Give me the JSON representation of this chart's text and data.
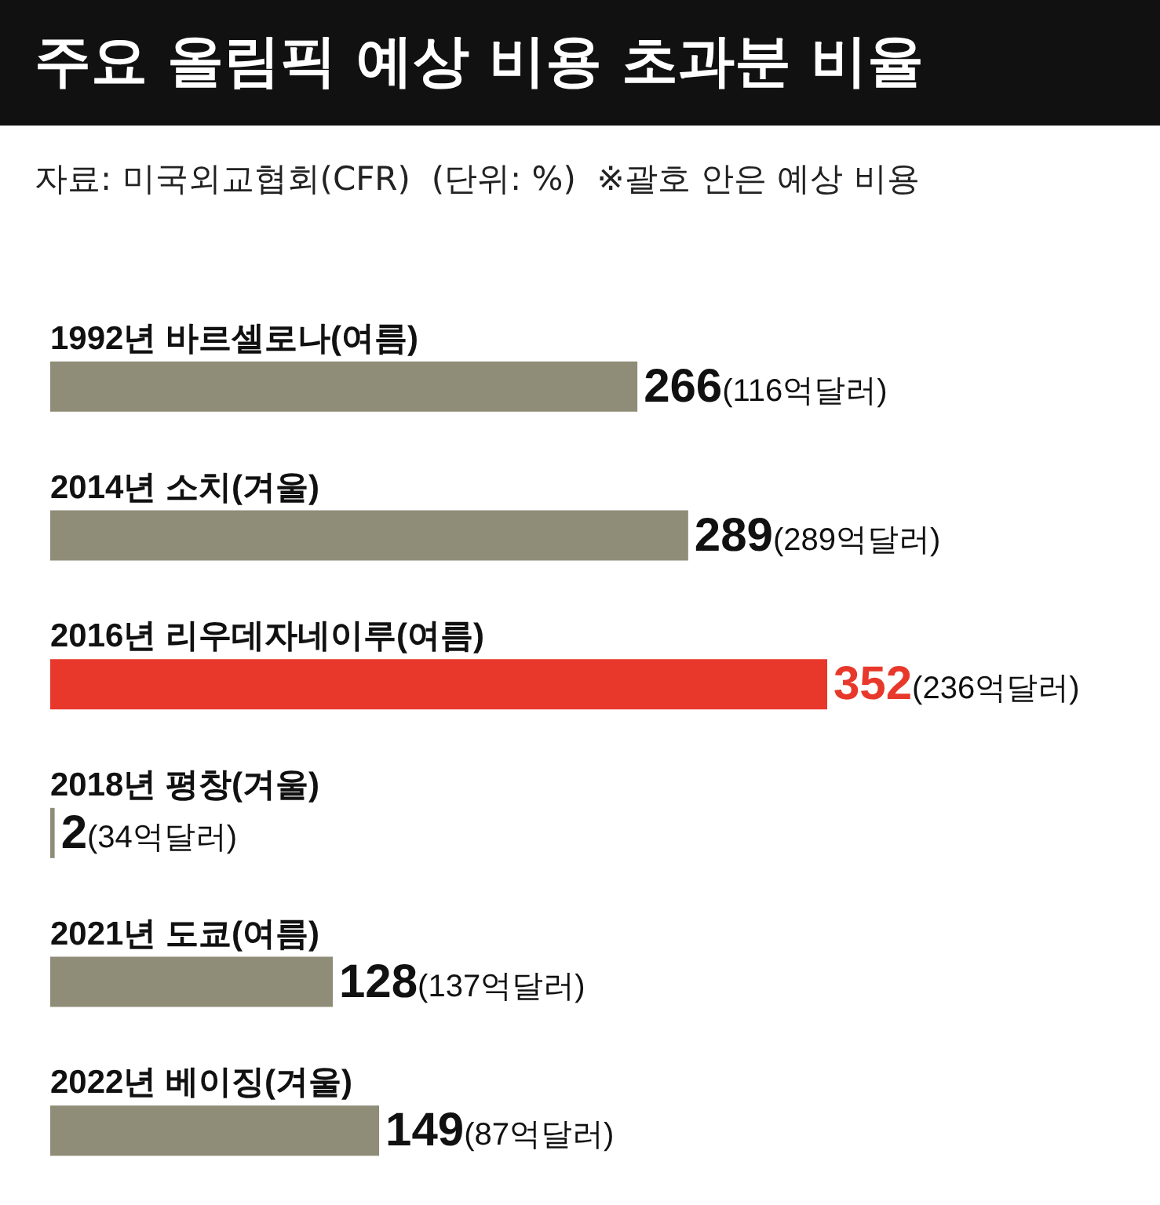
{
  "chart_data": {
    "type": "bar",
    "orientation": "horizontal",
    "title": "주요 올림픽 예상 비용 초과분 비율",
    "subtitle": "자료: 미국외교협회(CFR)  (단위: %)  ※괄호 안은 예상 비용",
    "categories": [
      "1992년 바르셀로나(여름)",
      "2014년 소치(겨울)",
      "2016년 리우데자네이루(여름)",
      "2018년 평창(겨울)",
      "2021년 도쿄(여름)",
      "2022년 베이징(겨울)"
    ],
    "values": [
      266,
      289,
      352,
      2,
      128,
      149
    ],
    "colors": [
      "#8f8c78",
      "#8f8c78",
      "#e8382b",
      "#8f8c78",
      "#8f8c78",
      "#8f8c78"
    ],
    "value_labels": [
      "266(116억달러)",
      "289(289억달러)",
      "352(236억달러)",
      "2(34억달러)",
      "128(137억달러)",
      "149(87억달러)"
    ]
  }
}
